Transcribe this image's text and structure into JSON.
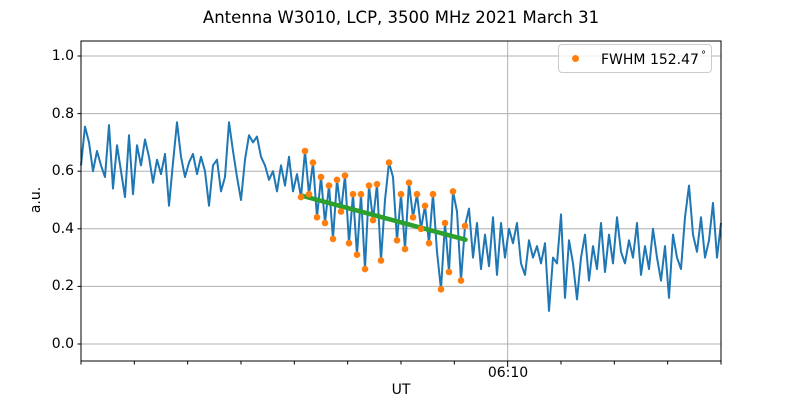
{
  "title": "Antenna W3010, LCP, 3500 MHz 2021 March 31",
  "axes": {
    "ylabel": "a.u.",
    "xlabel": "UT",
    "yticks": [
      "0.0",
      "0.2",
      "0.4",
      "0.6",
      "0.8",
      "1.0"
    ],
    "ytick_values": [
      0.0,
      0.2,
      0.4,
      0.6,
      0.8,
      1.0
    ],
    "xtick_label": "06:10",
    "x_major_t": 0,
    "grid": true
  },
  "legend": {
    "label": "FWHM 152.47",
    "degree": "°",
    "marker_color": "#ff7f0e",
    "position": "upper right"
  },
  "colors": {
    "signal_line": "#1f77b4",
    "extrema_points": "#ff7f0e",
    "fit_line": "#2ca02c",
    "grid": "#b0b0b0",
    "spine": "#000000",
    "background": "#ffffff"
  },
  "chart_data": {
    "type": "line",
    "title": "Antenna W3010, LCP, 3500 MHz 2021 March 31",
    "xlabel": "UT",
    "ylabel": "a.u.",
    "ylim": [
      -0.059,
      1.052
    ],
    "grid": true,
    "legend_position": "upper right",
    "x_axis": {
      "units": "minutes relative to labeled tick",
      "reference_tick": "06:10",
      "range": [
        -8,
        4
      ],
      "minor_tick_every": 1,
      "major_tick_at": 0
    },
    "series": [
      {
        "name": "signal",
        "type": "line",
        "color": "#1f77b4",
        "linewidth": 2,
        "t_start": -8.0,
        "t_step": 0.075,
        "values": [
          0.62,
          0.755,
          0.7,
          0.6,
          0.67,
          0.62,
          0.58,
          0.76,
          0.54,
          0.69,
          0.6,
          0.51,
          0.725,
          0.52,
          0.69,
          0.62,
          0.71,
          0.65,
          0.56,
          0.64,
          0.59,
          0.66,
          0.48,
          0.63,
          0.77,
          0.65,
          0.58,
          0.63,
          0.66,
          0.59,
          0.65,
          0.6,
          0.48,
          0.62,
          0.64,
          0.53,
          0.58,
          0.77,
          0.67,
          0.58,
          0.5,
          0.64,
          0.725,
          0.7,
          0.72,
          0.65,
          0.62,
          0.57,
          0.6,
          0.53,
          0.62,
          0.55,
          0.65,
          0.53,
          0.59,
          0.51,
          0.67,
          0.52,
          0.63,
          0.44,
          0.58,
          0.42,
          0.55,
          0.365,
          0.57,
          0.46,
          0.585,
          0.35,
          0.52,
          0.31,
          0.52,
          0.26,
          0.55,
          0.43,
          0.555,
          0.29,
          0.5,
          0.63,
          0.58,
          0.36,
          0.52,
          0.33,
          0.56,
          0.44,
          0.52,
          0.4,
          0.48,
          0.35,
          0.52,
          0.32,
          0.19,
          0.42,
          0.25,
          0.53,
          0.46,
          0.22,
          0.41,
          0.47,
          0.3,
          0.42,
          0.26,
          0.38,
          0.27,
          0.44,
          0.24,
          0.42,
          0.3,
          0.4,
          0.35,
          0.42,
          0.28,
          0.24,
          0.36,
          0.3,
          0.34,
          0.28,
          0.35,
          0.115,
          0.3,
          0.28,
          0.45,
          0.16,
          0.36,
          0.28,
          0.155,
          0.3,
          0.38,
          0.22,
          0.34,
          0.26,
          0.42,
          0.25,
          0.38,
          0.28,
          0.44,
          0.32,
          0.28,
          0.36,
          0.3,
          0.42,
          0.24,
          0.34,
          0.26,
          0.4,
          0.3,
          0.22,
          0.34,
          0.16,
          0.38,
          0.3,
          0.26,
          0.44,
          0.55,
          0.38,
          0.32,
          0.44,
          0.3,
          0.36,
          0.49,
          0.3,
          0.42
        ]
      },
      {
        "name": "linear fit",
        "type": "line",
        "color": "#2ca02c",
        "linewidth": 4.5,
        "points": [
          [
            -3.86,
            0.515
          ],
          [
            -0.79,
            0.362
          ]
        ]
      },
      {
        "name": "FWHM 152.47°",
        "type": "scatter",
        "color": "#ff7f0e",
        "marker_radius": 3.3,
        "points": [
          [
            -3.875,
            0.51
          ],
          [
            -3.8,
            0.67
          ],
          [
            -3.725,
            0.52
          ],
          [
            -3.65,
            0.63
          ],
          [
            -3.575,
            0.44
          ],
          [
            -3.5,
            0.58
          ],
          [
            -3.425,
            0.42
          ],
          [
            -3.35,
            0.55
          ],
          [
            -3.275,
            0.365
          ],
          [
            -3.2,
            0.57
          ],
          [
            -3.125,
            0.46
          ],
          [
            -3.05,
            0.585
          ],
          [
            -2.975,
            0.35
          ],
          [
            -2.9,
            0.52
          ],
          [
            -2.825,
            0.31
          ],
          [
            -2.75,
            0.52
          ],
          [
            -2.675,
            0.26
          ],
          [
            -2.6,
            0.55
          ],
          [
            -2.525,
            0.43
          ],
          [
            -2.45,
            0.555
          ],
          [
            -2.375,
            0.29
          ],
          [
            -2.225,
            0.63
          ],
          [
            -2.075,
            0.36
          ],
          [
            -2.0,
            0.52
          ],
          [
            -1.925,
            0.33
          ],
          [
            -1.85,
            0.56
          ],
          [
            -1.775,
            0.44
          ],
          [
            -1.7,
            0.52
          ],
          [
            -1.625,
            0.4
          ],
          [
            -1.55,
            0.48
          ],
          [
            -1.475,
            0.35
          ],
          [
            -1.4,
            0.52
          ],
          [
            -1.25,
            0.19
          ],
          [
            -1.175,
            0.42
          ],
          [
            -1.1,
            0.25
          ],
          [
            -1.025,
            0.53
          ],
          [
            -0.875,
            0.22
          ],
          [
            -0.8,
            0.41
          ]
        ]
      }
    ]
  }
}
